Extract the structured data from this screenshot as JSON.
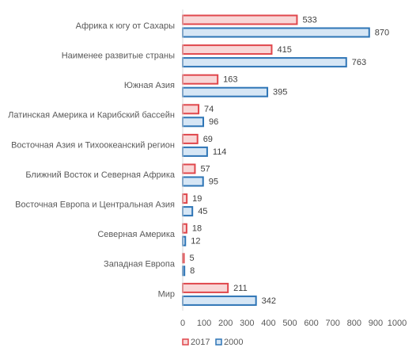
{
  "chart_data": {
    "type": "bar",
    "orientation": "horizontal",
    "categories": [
      "Африка к югу от Сахары",
      "Наименее развитые страны",
      "Южная Азия",
      "Латинская Америка и Карибский бассейн",
      "Восточная Азия и Тихоокеанский регион",
      "Ближний  Восток и Северная Африка",
      "Восточная Европа и Центральная Азия",
      "Северная Америка",
      "Западная Европа",
      "Мир"
    ],
    "series": [
      {
        "name": "2017",
        "values": [
          533,
          415,
          163,
          74,
          69,
          57,
          19,
          18,
          5,
          211
        ],
        "fill": "#f8d7d7",
        "stroke": "#e0474c"
      },
      {
        "name": "2000",
        "values": [
          870,
          763,
          395,
          96,
          114,
          95,
          45,
          12,
          8,
          342
        ],
        "fill": "#d6e6f5",
        "stroke": "#2e75b6"
      }
    ],
    "xlim": [
      0,
      1000
    ],
    "xticks": [
      "0",
      "100",
      "200",
      "300",
      "400",
      "500",
      "600",
      "700",
      "800",
      "900",
      "1000"
    ],
    "grid": false,
    "legend_position": "bottom-left",
    "title": "",
    "xlabel": "",
    "ylabel": ""
  }
}
